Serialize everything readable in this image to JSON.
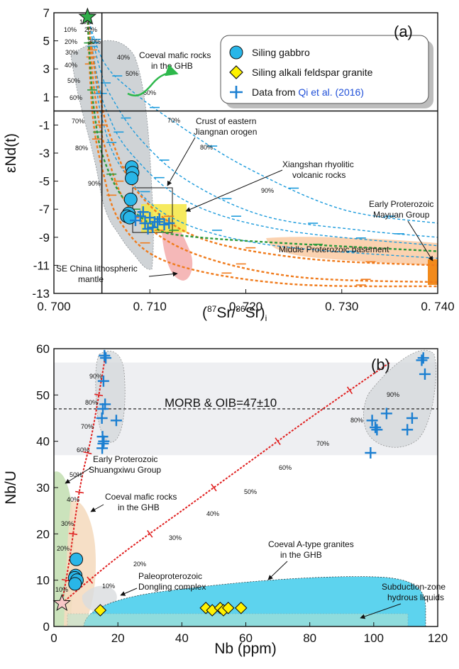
{
  "chart_data": [
    {
      "panel": "(a)",
      "type": "line",
      "xlabel": "(87Sr/86Sr)i",
      "ylabel": "εNd(t)",
      "xlim": [
        0.7,
        0.74
      ],
      "ylim": [
        -13,
        7
      ],
      "x_ticks": [
        "0. 700",
        "0. 710",
        "0. 720",
        "0. 730",
        "0. 740"
      ],
      "y_ticks": [
        "-13",
        "-11",
        "-9",
        "-7",
        "-5",
        "-3",
        "-1",
        "1",
        "3",
        "5",
        "7"
      ],
      "reference_lines": {
        "x": 0.705,
        "y": 0
      },
      "legend": [
        "Siling gabbro",
        "Siling alkali feldspar granite",
        "Data from Qi et al. (2016)"
      ],
      "legend_link_text": "Qi et al. (2016)",
      "legend_position": "top-right",
      "series": [
        {
          "name": "Siling gabbro",
          "marker": "circle",
          "color": "#29b6e8",
          "x": [
            0.7081,
            0.7082,
            0.7081,
            0.708,
            0.7078,
            0.7076,
            0.7079
          ],
          "y": [
            -4.0,
            -4.4,
            -4.8,
            -6.3,
            -7.3,
            -7.5,
            -7.6
          ]
        },
        {
          "name": "Data from Qi et al. (2016)",
          "marker": "cross",
          "color": "#1b7fd1",
          "x": [
            0.7085,
            0.709,
            0.7095,
            0.71,
            0.7105,
            0.711,
            0.7115,
            0.712,
            0.7093,
            0.7103,
            0.7098,
            0.7108
          ],
          "y": [
            -7.8,
            -7.5,
            -8.0,
            -7.6,
            -7.9,
            -7.7,
            -8.1,
            -8.0,
            -7.2,
            -8.3,
            -8.4,
            -7.9
          ]
        }
      ],
      "mixing_curves": [
        {
          "color": "#1c9bdc",
          "points": [
            [
              0.7035,
              6.7
            ],
            [
              0.7048,
              3
            ],
            [
              0.706,
              1
            ],
            [
              0.709,
              -2
            ],
            [
              0.714,
              -5
            ],
            [
              0.722,
              -7.5
            ],
            [
              0.732,
              -8.5
            ],
            [
              0.74,
              -9
            ]
          ]
        },
        {
          "color": "#1c9bdc",
          "points": [
            [
              0.7035,
              6.7
            ],
            [
              0.7052,
              3.5
            ],
            [
              0.708,
              1.5
            ],
            [
              0.713,
              -1
            ],
            [
              0.72,
              -4
            ],
            [
              0.73,
              -7
            ],
            [
              0.74,
              -8
            ]
          ]
        },
        {
          "color": "#1c9bdc",
          "points": [
            [
              0.7035,
              6.7
            ],
            [
              0.7045,
              2.5
            ],
            [
              0.7055,
              0
            ],
            [
              0.708,
              -3
            ],
            [
              0.714,
              -6.5
            ],
            [
              0.724,
              -8.5
            ],
            [
              0.74,
              -9.6
            ]
          ]
        },
        {
          "color": "#1c9bdc",
          "points": [
            [
              0.7035,
              6.7
            ],
            [
              0.7042,
              3
            ],
            [
              0.705,
              -0.5
            ],
            [
              0.707,
              -4
            ],
            [
              0.712,
              -7.5
            ],
            [
              0.722,
              -9.5
            ],
            [
              0.74,
              -10.5
            ]
          ]
        },
        {
          "color": "#f07b1c",
          "points": [
            [
              0.7035,
              6.7
            ],
            [
              0.7045,
              2
            ],
            [
              0.706,
              -2
            ],
            [
              0.709,
              -6
            ],
            [
              0.715,
              -9
            ],
            [
              0.726,
              -10.5
            ],
            [
              0.74,
              -11
            ]
          ]
        },
        {
          "color": "#f07b1c",
          "points": [
            [
              0.7035,
              6.7
            ],
            [
              0.7043,
              1
            ],
            [
              0.7055,
              -3
            ],
            [
              0.708,
              -7
            ],
            [
              0.714,
              -10
            ],
            [
              0.725,
              -11.8
            ],
            [
              0.74,
              -12.2
            ]
          ]
        },
        {
          "color": "#f07b1c",
          "points": [
            [
              0.7035,
              6.7
            ],
            [
              0.704,
              0
            ],
            [
              0.705,
              -4
            ],
            [
              0.707,
              -8
            ],
            [
              0.712,
              -10.8
            ],
            [
              0.724,
              -12.3
            ],
            [
              0.74,
              -12.5
            ]
          ]
        },
        {
          "color": "#2c9a3c",
          "points": [
            [
              0.7035,
              6.7
            ],
            [
              0.7038,
              3
            ],
            [
              0.7042,
              0
            ],
            [
              0.705,
              -3
            ],
            [
              0.707,
              -6
            ],
            [
              0.71,
              -8
            ],
            [
              0.715,
              -9
            ],
            [
              0.74,
              -10
            ]
          ]
        }
      ],
      "annotations": [
        {
          "text": "(a)"
        },
        {
          "text": "Coeval mafic rocks"
        },
        {
          "text": "in the GHB"
        },
        {
          "text": "Crust of eastern"
        },
        {
          "text": "Jiangnan orogen"
        },
        {
          "text": "Xiangshan rhyolitic"
        },
        {
          "text": "volcanic rocks"
        },
        {
          "text": "Early Proterozoic"
        },
        {
          "text": "Mayuan Group"
        },
        {
          "text": "Middle Proterozoic basement"
        },
        {
          "text": "SE China lithospheric"
        },
        {
          "text": "mantle"
        }
      ],
      "curve_percent_labels": [
        "10%",
        "20%",
        "30%",
        "40%",
        "50%",
        "60%",
        "70%",
        "80%",
        "90%"
      ]
    },
    {
      "panel": "(b)",
      "type": "scatter",
      "xlabel": "Nb (ppm)",
      "ylabel": "Nb/U",
      "xlim": [
        0,
        120
      ],
      "ylim": [
        0,
        60
      ],
      "x_ticks": [
        "0",
        "20",
        "40",
        "60",
        "80",
        "100",
        "120"
      ],
      "y_ticks": [
        "0",
        "10",
        "20",
        "30",
        "40",
        "50",
        "60"
      ],
      "reference_line": {
        "y": 47,
        "band": [
          37,
          57
        ],
        "label": "MORB & OIB=47±10"
      },
      "series": [
        {
          "name": "Siling gabbro",
          "marker": "circle",
          "color": "#29b6e8",
          "x": [
            7.0,
            6.8,
            6.5,
            7.2,
            6.6
          ],
          "y": [
            14.5,
            11.0,
            10.5,
            10.0,
            9.2
          ]
        },
        {
          "name": "Siling alkali feldspar granite",
          "marker": "diamond",
          "color": "#fff200",
          "x": [
            14.5,
            47.5,
            49.5,
            52.0,
            53.0,
            54.5,
            58.5
          ],
          "y": [
            3.5,
            4.0,
            3.5,
            4.0,
            3.5,
            4.0,
            4.0
          ]
        },
        {
          "name": "Data from Qi et al. (2016)",
          "marker": "cross",
          "color": "#1b7fd1",
          "x": [
            15.8,
            16.2,
            15.5,
            16.0,
            15.3,
            15.0,
            15.2,
            15.4,
            15.1,
            15.6,
            19.5,
            99.5,
            100.5,
            101.0,
            104.0,
            110.5,
            112.0,
            115.0,
            115.5,
            116.0,
            99.0
          ],
          "y": [
            58.5,
            58.0,
            53.0,
            48.0,
            47.0,
            45.0,
            41.0,
            39.5,
            38.5,
            40.0,
            44.5,
            44.5,
            43.0,
            42.5,
            46.0,
            42.5,
            45.0,
            57.5,
            58.0,
            54.5,
            37.5
          ]
        }
      ],
      "mixing_lines": [
        {
          "color": "#e02020",
          "points": [
            [
              2.5,
              5
            ],
            [
              5,
              15
            ],
            [
              7,
              25
            ],
            [
              9,
              33
            ],
            [
              12,
              42
            ],
            [
              16,
              58
            ]
          ]
        },
        {
          "color": "#e02020",
          "points": [
            [
              2.5,
              5
            ],
            [
              20,
              15
            ],
            [
              40,
              25
            ],
            [
              60,
              35
            ],
            [
              80,
              45
            ],
            [
              105,
              57
            ]
          ]
        }
      ],
      "endmember": {
        "marker": "star",
        "x": 2.5,
        "y": 5
      },
      "annotations": [
        {
          "text": "(b)"
        },
        {
          "text": "Early Proterozoic"
        },
        {
          "text": "Shuangxiwu Group"
        },
        {
          "text": "Coeval mafic rocks"
        },
        {
          "text": "in the GHB"
        },
        {
          "text": "Paleoproterozoic"
        },
        {
          "text": "Dongling complex"
        },
        {
          "text": "Coeval A-type granites"
        },
        {
          "text": "in the GHB"
        },
        {
          "text": "Subduction-zone"
        },
        {
          "text": "hydrous liquids"
        }
      ],
      "curve_percent_labels": [
        "10%",
        "20%",
        "30%",
        "40%",
        "50%",
        "60%",
        "70%",
        "80%",
        "90%"
      ]
    }
  ],
  "colors": {
    "gabbro_fill": "#29b6e8",
    "granite_fill": "#fff200",
    "qi_cross": "#1b7fd1",
    "blue_curve": "#1c9bdc",
    "orange_curve": "#f07b1c",
    "green_curve": "#2c9a3c",
    "red_line": "#e02020"
  }
}
